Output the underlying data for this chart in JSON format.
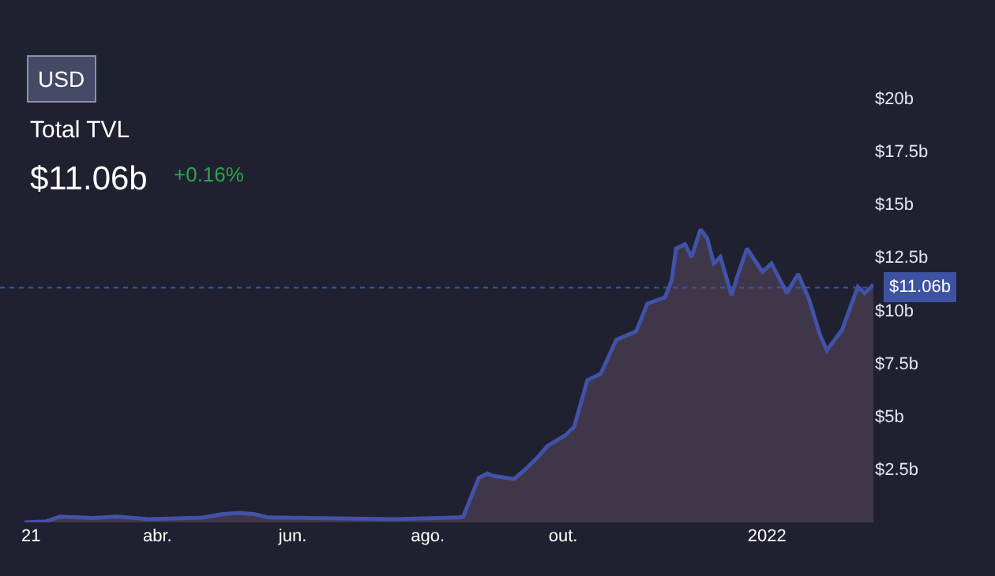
{
  "chart_data": {
    "type": "area",
    "title": "Total TVL",
    "subtitle": "$11.06b",
    "annotations": [
      "+0.16%",
      "USD"
    ],
    "x": [
      "2021-01-31",
      "2021-02-10",
      "2021-02-16",
      "2021-03-03",
      "2021-03-14",
      "2021-03-28",
      "2021-04-22",
      "2021-04-30",
      "2021-05-08",
      "2021-05-15",
      "2021-05-21",
      "2021-07-17",
      "2021-08-15",
      "2021-08-17",
      "2021-08-24",
      "2021-08-28",
      "2021-08-30",
      "2021-09-05",
      "2021-09-09",
      "2021-09-14",
      "2021-09-19",
      "2021-09-24",
      "2021-10-02",
      "2021-10-06",
      "2021-10-12",
      "2021-10-18",
      "2021-10-25",
      "2021-11-03",
      "2021-11-08",
      "2021-11-16",
      "2021-11-19",
      "2021-11-21",
      "2021-11-25",
      "2021-11-28",
      "2021-12-02",
      "2021-12-05",
      "2021-12-08",
      "2021-12-11",
      "2021-12-16",
      "2021-12-19",
      "2021-12-23",
      "2021-12-30",
      "2022-01-03",
      "2022-01-10",
      "2022-01-15",
      "2022-01-20",
      "2022-01-25",
      "2022-01-28",
      "2022-02-04",
      "2022-02-11",
      "2022-02-14",
      "2022-02-18"
    ],
    "series": [
      {
        "color": "#4152a8",
        "values": [
          0.0,
          0.05,
          0.27,
          0.2,
          0.27,
          0.15,
          0.23,
          0.38,
          0.45,
          0.38,
          0.23,
          0.15,
          0.23,
          0.27,
          2.1,
          2.3,
          2.2,
          2.1,
          2.05,
          2.5,
          3.0,
          3.6,
          4.1,
          4.5,
          6.7,
          7.0,
          8.6,
          9.0,
          10.3,
          10.6,
          11.4,
          12.9,
          13.1,
          12.5,
          13.8,
          13.4,
          12.2,
          12.5,
          10.7,
          11.7,
          12.9,
          11.8,
          12.2,
          10.8,
          11.7,
          10.5,
          8.8,
          8.1,
          9.1,
          11.1,
          10.8,
          11.2
        ]
      }
    ],
    "xlim": [
      "2021-01-20",
      "2022-02-18"
    ],
    "xticks": [
      {
        "value": "2021-02-03",
        "label": "21"
      },
      {
        "value": "2021-04-01",
        "label": "abr."
      },
      {
        "value": "2021-06-01",
        "label": "jun."
      },
      {
        "value": "2021-08-01",
        "label": "ago."
      },
      {
        "value": "2021-10-01",
        "label": "out."
      },
      {
        "value": "2022-01-01",
        "label": "2022"
      }
    ],
    "ylim": [
      0,
      20
    ],
    "yticks": [
      {
        "value": 2.5,
        "label": "$2.5b"
      },
      {
        "value": 5,
        "label": "$5b"
      },
      {
        "value": 7.5,
        "label": "$7.5b"
      },
      {
        "value": 10,
        "label": "$10b"
      },
      {
        "value": 12.5,
        "label": "$12.5b"
      },
      {
        "value": 15,
        "label": "$15b"
      },
      {
        "value": 17.5,
        "label": "$17.5b"
      },
      {
        "value": 20,
        "label": "$20b"
      }
    ],
    "ref_lines": [
      {
        "axis": "y",
        "value": 11.06,
        "label": "$11.06b",
        "color": "#3d52a0",
        "line_style": "dotted"
      }
    ],
    "grid": false,
    "legend": false
  }
}
